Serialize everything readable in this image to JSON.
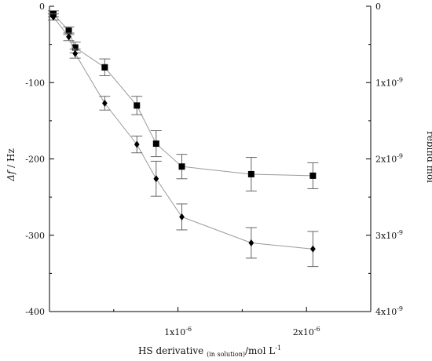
{
  "chart_data": {
    "type": "scatter",
    "title": "",
    "xlabel": {
      "main": "HS derivative",
      "subscript": "(in solution)",
      "unit": "/mol L",
      "unit_exponent": "-1"
    },
    "ylabel": {
      "italic": "Δf",
      "rest": " / Hz"
    },
    "y2label": "rebind mol",
    "xlim": [
      0,
      2.5e-06
    ],
    "ylim": [
      -400,
      0
    ],
    "y2lim": [
      4e-09,
      0
    ],
    "grid": false,
    "x_tick_labels": [
      {
        "value": 1e-06,
        "mantissa": "1x10",
        "exponent": "-6"
      },
      {
        "value": 2e-06,
        "mantissa": "2x10",
        "exponent": "-6"
      }
    ],
    "y_tick_labels": [
      {
        "value": 0,
        "label": "0"
      },
      {
        "value": -100,
        "label": "-100"
      },
      {
        "value": -200,
        "label": "-200"
      },
      {
        "value": -300,
        "label": "-300"
      },
      {
        "value": -400,
        "label": "-400"
      }
    ],
    "y2_tick_labels": [
      {
        "value": 0,
        "mantissa": "0",
        "exponent": ""
      },
      {
        "value": 1e-09,
        "mantissa": "1x10",
        "exponent": "-9"
      },
      {
        "value": 2e-09,
        "mantissa": "2x10",
        "exponent": "-9"
      },
      {
        "value": 3e-09,
        "mantissa": "3x10",
        "exponent": "-9"
      },
      {
        "value": 4e-09,
        "mantissa": "4x10",
        "exponent": "-9"
      }
    ],
    "series": [
      {
        "marker": "square",
        "color": "#000000",
        "line_color": "#9a9a9a",
        "x": [
          3e-08,
          1.5e-07,
          2e-07,
          4.3e-07,
          6.8e-07,
          8.3e-07,
          1.03e-06,
          1.57e-06,
          2.05e-06
        ],
        "y": [
          -10,
          -32,
          -54,
          -80,
          -130,
          -180,
          -210,
          -220,
          -222
        ],
        "error": [
          4,
          5,
          7,
          11,
          12,
          17,
          16,
          22,
          17
        ]
      },
      {
        "marker": "diamond",
        "color": "#000000",
        "line_color": "#9a9a9a",
        "x": [
          3e-08,
          1.5e-07,
          2e-07,
          4.3e-07,
          6.8e-07,
          8.3e-07,
          1.03e-06,
          1.57e-06,
          2.05e-06
        ],
        "y": [
          -14,
          -40,
          -62,
          -127,
          -181,
          -226,
          -276,
          -310,
          -318
        ],
        "error": [
          4,
          5,
          6,
          9,
          11,
          23,
          17,
          20,
          23
        ]
      }
    ]
  }
}
